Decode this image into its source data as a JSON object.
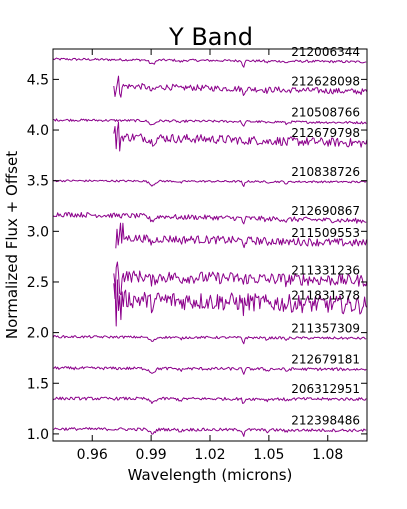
{
  "chart_data": {
    "type": "line",
    "title": "Y Band",
    "xlabel": "Wavelength (microns)",
    "ylabel": "Normalized Flux + Offset",
    "xlim": [
      0.94,
      1.1
    ],
    "ylim": [
      0.93,
      4.8
    ],
    "xticks": [
      "0.96",
      "0.99",
      "1.02",
      "1.05",
      "1.08"
    ],
    "yticks": [
      "1.0",
      "1.5",
      "2.0",
      "2.5",
      "3.0",
      "3.5",
      "4.0",
      "4.5"
    ],
    "grid": false,
    "line_color": "#8b008b",
    "series": [
      {
        "name": "212006344",
        "offset": 4.7,
        "slope": -0.17,
        "start": 0.94,
        "noise": 0.012
      },
      {
        "name": "212628098",
        "offset": 4.45,
        "slope": -0.45,
        "start": 0.971,
        "noise": 0.03
      },
      {
        "name": "210508766",
        "offset": 4.1,
        "slope": -0.17,
        "start": 0.94,
        "noise": 0.012
      },
      {
        "name": "212679798",
        "offset": 3.95,
        "slope": -0.5,
        "start": 0.971,
        "noise": 0.045
      },
      {
        "name": "210838726",
        "offset": 3.5,
        "slope": -0.08,
        "start": 0.94,
        "noise": 0.01
      },
      {
        "name": "212690867",
        "offset": 3.17,
        "slope": -0.42,
        "start": 0.94,
        "noise": 0.025
      },
      {
        "name": "211509553",
        "offset": 2.95,
        "slope": -0.42,
        "start": 0.972,
        "noise": 0.04
      },
      {
        "name": "211331236",
        "offset": 2.57,
        "slope": -0.35,
        "start": 0.971,
        "noise": 0.06
      },
      {
        "name": "211831378",
        "offset": 2.35,
        "slope": -0.5,
        "start": 0.971,
        "noise": 0.09
      },
      {
        "name": "211357309",
        "offset": 1.96,
        "slope": -0.1,
        "start": 0.94,
        "noise": 0.012
      },
      {
        "name": "212679181",
        "offset": 1.65,
        "slope": -0.08,
        "start": 0.94,
        "noise": 0.015
      },
      {
        "name": "206312951",
        "offset": 1.35,
        "slope": -0.04,
        "start": 0.94,
        "noise": 0.015
      },
      {
        "name": "212398486",
        "offset": 1.05,
        "slope": -0.1,
        "start": 0.94,
        "noise": 0.015
      }
    ]
  }
}
